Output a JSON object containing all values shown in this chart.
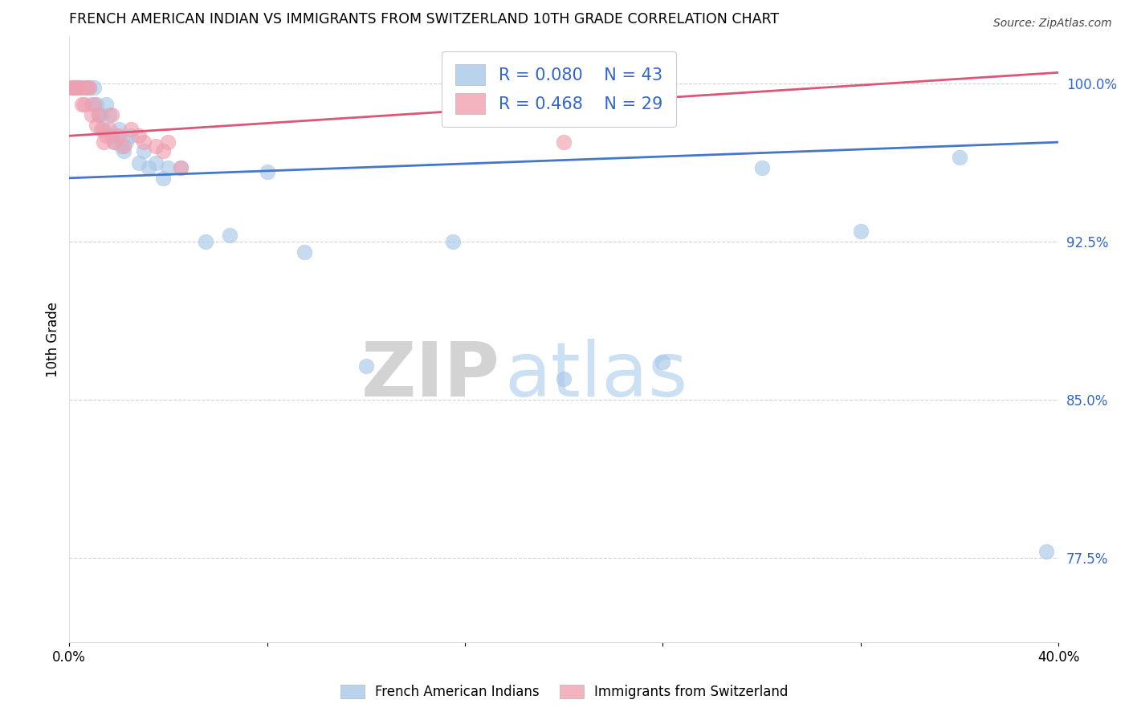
{
  "title": "FRENCH AMERICAN INDIAN VS IMMIGRANTS FROM SWITZERLAND 10TH GRADE CORRELATION CHART",
  "source": "Source: ZipAtlas.com",
  "ylabel": "10th Grade",
  "legend_blue_r": "R = 0.080",
  "legend_blue_n": "N = 43",
  "legend_pink_r": "R = 0.468",
  "legend_pink_n": "N = 29",
  "legend_blue_label": "French American Indians",
  "legend_pink_label": "Immigrants from Switzerland",
  "blue_color": "#a8c8e8",
  "pink_color": "#f0a0b0",
  "blue_line_color": "#4477cc",
  "pink_line_color": "#dd5577",
  "legend_text_color": "#3366cc",
  "watermark_zip": "ZIP",
  "watermark_atlas": "atlas",
  "blue_line_x": [
    0.0,
    0.4
  ],
  "blue_line_y": [
    0.955,
    0.972
  ],
  "pink_line_x": [
    0.0,
    0.4
  ],
  "pink_line_y": [
    0.975,
    1.005
  ],
  "blue_x": [
    0.001,
    0.002,
    0.003,
    0.004,
    0.005,
    0.006,
    0.007,
    0.008,
    0.009,
    0.01,
    0.011,
    0.012,
    0.013,
    0.014,
    0.015,
    0.016,
    0.017,
    0.018,
    0.019,
    0.02,
    0.021,
    0.022,
    0.023,
    0.025,
    0.028,
    0.03,
    0.032,
    0.035,
    0.038,
    0.04,
    0.045,
    0.055,
    0.065,
    0.08,
    0.095,
    0.12,
    0.155,
    0.2,
    0.24,
    0.28,
    0.32,
    0.36,
    0.395
  ],
  "blue_y": [
    0.998,
    0.998,
    0.998,
    0.998,
    0.998,
    0.998,
    0.998,
    0.998,
    0.99,
    0.998,
    0.99,
    0.985,
    0.985,
    0.978,
    0.99,
    0.985,
    0.975,
    0.972,
    0.975,
    0.978,
    0.97,
    0.968,
    0.972,
    0.975,
    0.962,
    0.968,
    0.96,
    0.962,
    0.955,
    0.96,
    0.96,
    0.925,
    0.928,
    0.958,
    0.92,
    0.866,
    0.925,
    0.86,
    0.868,
    0.96,
    0.93,
    0.965,
    0.778
  ],
  "pink_x": [
    0.001,
    0.002,
    0.003,
    0.004,
    0.005,
    0.006,
    0.007,
    0.008,
    0.009,
    0.01,
    0.011,
    0.012,
    0.013,
    0.014,
    0.015,
    0.016,
    0.017,
    0.018,
    0.02,
    0.022,
    0.025,
    0.028,
    0.03,
    0.035,
    0.038,
    0.04,
    0.045,
    0.16,
    0.2
  ],
  "pink_y": [
    0.998,
    0.998,
    0.998,
    0.998,
    0.99,
    0.99,
    0.998,
    0.998,
    0.985,
    0.99,
    0.98,
    0.985,
    0.978,
    0.972,
    0.975,
    0.978,
    0.985,
    0.972,
    0.975,
    0.97,
    0.978,
    0.975,
    0.972,
    0.97,
    0.968,
    0.972,
    0.96,
    0.998,
    0.972
  ],
  "xlim": [
    0.0,
    0.4
  ],
  "ylim": [
    0.735,
    1.022
  ]
}
